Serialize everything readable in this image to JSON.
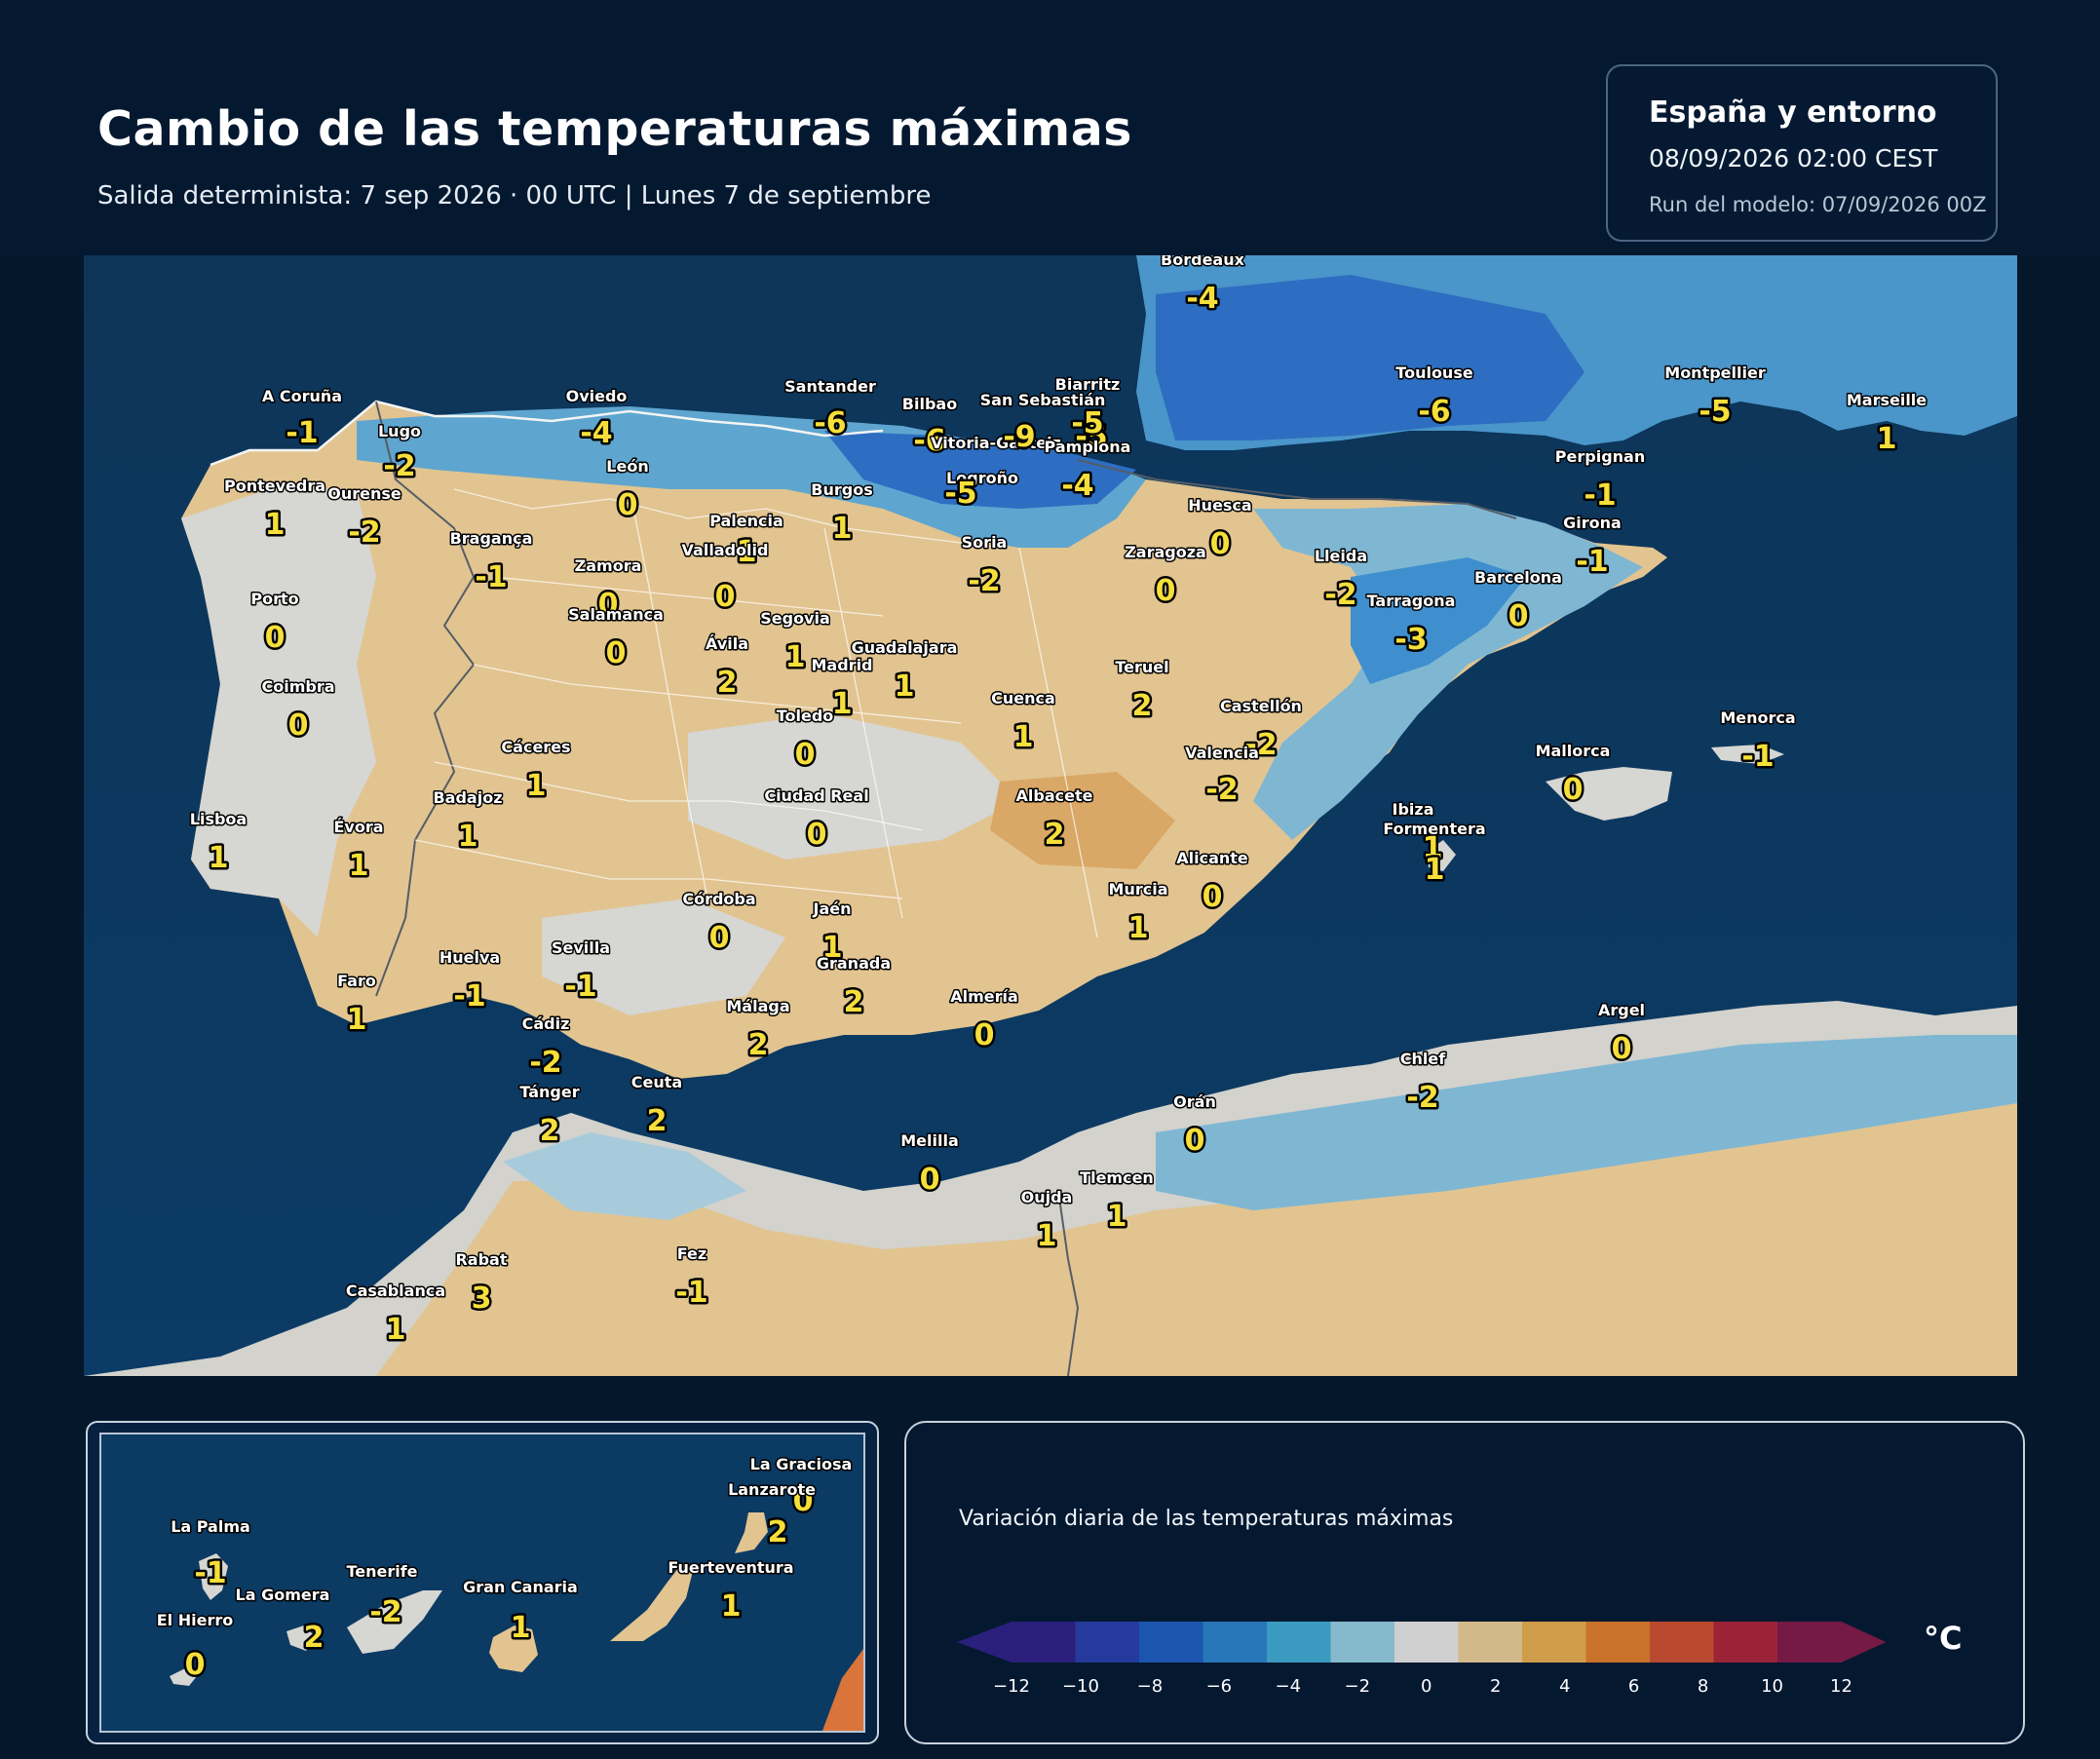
{
  "header": {
    "title": "Cambio de las temperaturas máximas",
    "subtitle": "Salida determinista: 7 sep 2026 · 00 UTC  |  Lunes 7 de septiembre"
  },
  "info_box": {
    "region": "España y entorno",
    "valid_time": "08/09/2026  02:00 CEST",
    "model_run": "Run del modelo: 07/09/2026 00Z"
  },
  "colors": {
    "sea": "#0b3a63",
    "neutral": "#d6d6d2",
    "warm": "#e2c490",
    "cool": "#8dc0d6",
    "cold": "#3f8fcf",
    "very_cold": "#2a6cc4"
  },
  "cities": [
    {
      "id": "a-coruna",
      "name": "A Coruña",
      "value": "-1"
    },
    {
      "id": "lugo",
      "name": "Lugo",
      "value": "-2"
    },
    {
      "id": "oviedo",
      "name": "Oviedo",
      "value": "-4"
    },
    {
      "id": "santander",
      "name": "Santander",
      "value": "-6"
    },
    {
      "id": "bilbao",
      "name": "Bilbao",
      "value": "-6"
    },
    {
      "id": "vitoria",
      "name": "Vitoria-Gasteiz",
      "value": "-9"
    },
    {
      "id": "san-sebastian",
      "name": "San Sebastián",
      "value": "-5"
    },
    {
      "id": "biarritz",
      "name": "Biarritz",
      "value": "-5"
    },
    {
      "id": "pamplona",
      "name": "Pamplona",
      "value": "-4"
    },
    {
      "id": "bordeaux",
      "name": "Bordeaux",
      "value": "-4"
    },
    {
      "id": "toulouse",
      "name": "Toulouse",
      "value": "-6"
    },
    {
      "id": "montpellier",
      "name": "Montpellier",
      "value": "-5"
    },
    {
      "id": "marseille",
      "name": "Marseille",
      "value": "1"
    },
    {
      "id": "perpignan",
      "name": "Perpignan",
      "value": "-1"
    },
    {
      "id": "girona",
      "name": "Girona",
      "value": "-1"
    },
    {
      "id": "pontevedra",
      "name": "Pontevedra",
      "value": "1"
    },
    {
      "id": "ourense",
      "name": "Ourense",
      "value": "-2"
    },
    {
      "id": "leon",
      "name": "León",
      "value": "0"
    },
    {
      "id": "burgos",
      "name": "Burgos",
      "value": "1"
    },
    {
      "id": "logrono",
      "name": "Logroño",
      "value": "-5"
    },
    {
      "id": "soria",
      "name": "Soria",
      "value": "-2"
    },
    {
      "id": "huesca",
      "name": "Huesca",
      "value": "0"
    },
    {
      "id": "palencia",
      "name": "Palencia",
      "value": "1"
    },
    {
      "id": "braganca",
      "name": "Bragança",
      "value": "-1"
    },
    {
      "id": "valladolid",
      "name": "Valladolid",
      "value": "0"
    },
    {
      "id": "zamora",
      "name": "Zamora",
      "value": "0"
    },
    {
      "id": "zaragoza",
      "name": "Zaragoza",
      "value": "0"
    },
    {
      "id": "lleida",
      "name": "Lleida",
      "value": "-2"
    },
    {
      "id": "barcelona",
      "name": "Barcelona",
      "value": "0"
    },
    {
      "id": "tarragona",
      "name": "Tarragona",
      "value": "-3"
    },
    {
      "id": "porto",
      "name": "Porto",
      "value": "0"
    },
    {
      "id": "salamanca",
      "name": "Salamanca",
      "value": "0"
    },
    {
      "id": "segovia",
      "name": "Segovia",
      "value": "1"
    },
    {
      "id": "avila",
      "name": "Ávila",
      "value": "2"
    },
    {
      "id": "madrid",
      "name": "Madrid",
      "value": "1"
    },
    {
      "id": "guadalajara",
      "name": "Guadalajara",
      "value": "1"
    },
    {
      "id": "coimbra",
      "name": "Coimbra",
      "value": "0"
    },
    {
      "id": "teruel",
      "name": "Teruel",
      "value": "2"
    },
    {
      "id": "cuenca",
      "name": "Cuenca",
      "value": "1"
    },
    {
      "id": "toledo",
      "name": "Toledo",
      "value": "0"
    },
    {
      "id": "castellon",
      "name": "Castellón",
      "value": "-2"
    },
    {
      "id": "valencia",
      "name": "Valencia",
      "value": "-2"
    },
    {
      "id": "caceres",
      "name": "Cáceres",
      "value": "1"
    },
    {
      "id": "mallorca",
      "name": "Mallorca",
      "value": "0"
    },
    {
      "id": "menorca",
      "name": "Menorca",
      "value": "-1"
    },
    {
      "id": "badajoz",
      "name": "Badajoz",
      "value": "1"
    },
    {
      "id": "ciudad-real",
      "name": "Ciudad Real",
      "value": "0"
    },
    {
      "id": "albacete",
      "name": "Albacete",
      "value": "2"
    },
    {
      "id": "lisboa",
      "name": "Lisboa",
      "value": "1"
    },
    {
      "id": "evora",
      "name": "Évora",
      "value": "1"
    },
    {
      "id": "ibiza",
      "name": "Ibiza",
      "value": "1"
    },
    {
      "id": "formentera",
      "name": "Formentera",
      "value": "1"
    },
    {
      "id": "alicante",
      "name": "Alicante",
      "value": "0"
    },
    {
      "id": "murcia",
      "name": "Murcia",
      "value": "1"
    },
    {
      "id": "cordoba",
      "name": "Córdoba",
      "value": "0"
    },
    {
      "id": "jaen",
      "name": "Jaén",
      "value": "1"
    },
    {
      "id": "granada",
      "name": "Granada",
      "value": "2"
    },
    {
      "id": "sevilla",
      "name": "Sevilla",
      "value": "-1"
    },
    {
      "id": "huelva",
      "name": "Huelva",
      "value": "-1"
    },
    {
      "id": "faro",
      "name": "Faro",
      "value": "1"
    },
    {
      "id": "almeria",
      "name": "Almería",
      "value": "0"
    },
    {
      "id": "malaga",
      "name": "Málaga",
      "value": "2"
    },
    {
      "id": "cadiz",
      "name": "Cádiz",
      "value": "-2"
    },
    {
      "id": "argel",
      "name": "Argel",
      "value": "0"
    },
    {
      "id": "chlef",
      "name": "Chlef",
      "value": "-2"
    },
    {
      "id": "ceuta",
      "name": "Ceuta",
      "value": "2"
    },
    {
      "id": "tanger",
      "name": "Tánger",
      "value": "2"
    },
    {
      "id": "oran",
      "name": "Orán",
      "value": "0"
    },
    {
      "id": "melilla",
      "name": "Melilla",
      "value": "0"
    },
    {
      "id": "tlemcen",
      "name": "Tlemcen",
      "value": "1"
    },
    {
      "id": "oujda",
      "name": "Oujda",
      "value": "1"
    },
    {
      "id": "rabat",
      "name": "Rabat",
      "value": "3"
    },
    {
      "id": "fez",
      "name": "Fez",
      "value": "-1"
    },
    {
      "id": "casablanca",
      "name": "Casablanca",
      "value": "1"
    }
  ],
  "canarias": [
    {
      "id": "la-graciosa",
      "name": "La Graciosa",
      "value": "0"
    },
    {
      "id": "lanzarote",
      "name": "Lanzarote",
      "value": "2"
    },
    {
      "id": "la-palma",
      "name": "La Palma",
      "value": "-1"
    },
    {
      "id": "tenerife",
      "name": "Tenerife",
      "value": "-2"
    },
    {
      "id": "la-gomera",
      "name": "La Gomera",
      "value": "2"
    },
    {
      "id": "gran-canaria",
      "name": "Gran Canaria",
      "value": "1"
    },
    {
      "id": "fuerteventura",
      "name": "Fuerteventura",
      "value": "1"
    },
    {
      "id": "el-hierro",
      "name": "El Hierro",
      "value": "0"
    }
  ],
  "legend": {
    "title": "Variación diaria de las temperaturas máximas",
    "unit": "°C",
    "ticks": [
      "−12",
      "−10",
      "−8",
      "−6",
      "−4",
      "−2",
      "0",
      "2",
      "4",
      "6",
      "8",
      "10",
      "12"
    ],
    "colors": [
      "#2a1f7a",
      "#253a9c",
      "#1c55ad",
      "#2776b8",
      "#3b9ac0",
      "#86b9cb",
      "#cfcfcf",
      "#d3b98a",
      "#cf9d4a",
      "#c8722b",
      "#b94a2f",
      "#9b2338",
      "#741a45"
    ]
  }
}
